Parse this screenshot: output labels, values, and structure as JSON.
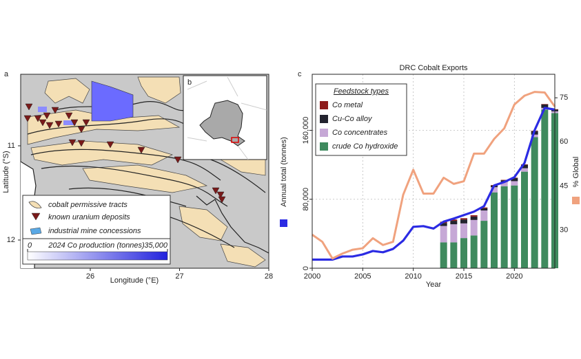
{
  "map": {
    "panel_label": "a",
    "x_label": "Longitude (°E)",
    "y_label": "Latitude (°S)",
    "xticks": [
      26,
      27,
      28
    ],
    "yticks": [
      11,
      12
    ],
    "legend": [
      "cobalt permissive tracts",
      "known uranium deposits",
      "industrial mine concessions"
    ],
    "colorbar": {
      "title": "2024 Co production (tonnes)",
      "ticks": [
        0,
        {
          "value": 35000,
          "label": "35,000"
        }
      ]
    }
  },
  "inset": {
    "panel_label": "b"
  },
  "chart_data": {
    "type": "bar",
    "panel_label": "c",
    "title": "DRC Cobalt Exports",
    "stacked": true,
    "x_label": "Year",
    "y_label": "Annual total (tonnes)",
    "y2_label": "% Global",
    "legend_title": "Feedstock types",
    "x": [
      2000,
      2001,
      2002,
      2003,
      2004,
      2005,
      2006,
      2007,
      2008,
      2009,
      2010,
      2011,
      2012,
      2013,
      2014,
      2015,
      2016,
      2017,
      2018,
      2019,
      2020,
      2021,
      2022,
      2023,
      2024
    ],
    "xlim": [
      2000,
      2024
    ],
    "xticks": [
      2000,
      2005,
      2010,
      2015,
      2020
    ],
    "ylim": [
      0,
      225000
    ],
    "yticks": [
      0,
      {
        "value": 80000,
        "label": "80,000"
      },
      {
        "value": 160000,
        "label": "160,000"
      }
    ],
    "y2lim": [
      17,
      83
    ],
    "y2ticks": [
      30,
      45,
      60,
      75
    ],
    "grid": true,
    "series": [
      {
        "name": "Co metal",
        "color": "#8e1b1b",
        "values": [
          null,
          null,
          null,
          null,
          null,
          null,
          null,
          null,
          null,
          null,
          null,
          null,
          null,
          1500,
          1500,
          1500,
          1500,
          1000,
          500,
          500,
          500,
          500,
          500,
          500,
          500
        ]
      },
      {
        "name": "Cu-Co alloy",
        "color": "#23232f",
        "values": [
          null,
          null,
          null,
          null,
          null,
          null,
          null,
          null,
          null,
          null,
          null,
          null,
          null,
          3500,
          4000,
          4500,
          4000,
          2500,
          2000,
          2000,
          3500,
          4000,
          4000,
          4000,
          2000
        ]
      },
      {
        "name": "Co concentrates",
        "color": "#c6a8d6",
        "values": [
          null,
          null,
          null,
          null,
          null,
          null,
          null,
          null,
          null,
          null,
          null,
          null,
          null,
          19000,
          21000,
          17000,
          18000,
          12000,
          6000,
          5000,
          5000,
          4000,
          3000,
          2000,
          2000
        ]
      },
      {
        "name": "crude Co hydroxide",
        "color": "#3f8a5e",
        "values": [
          null,
          null,
          null,
          null,
          null,
          null,
          null,
          null,
          null,
          null,
          null,
          null,
          null,
          30000,
          30000,
          35000,
          38000,
          55000,
          88000,
          95000,
          96000,
          112000,
          152000,
          184000,
          180000
        ]
      },
      {
        "type": "line",
        "color": "#2b2be3",
        "values": [
          10000,
          10000,
          10000,
          13600,
          13600,
          16000,
          20000,
          18500,
          22400,
          32000,
          48000,
          48800,
          46000,
          54000,
          57600,
          61600,
          65600,
          72000,
          96000,
          100000,
          105600,
          122000,
          160000,
          186000,
          184000
        ]
      },
      {
        "type": "line",
        "axis": "y2",
        "color": "#f0a27e",
        "values": [
          28.4,
          26,
          20.3,
          22,
          23.3,
          23.8,
          27.2,
          24.9,
          26,
          42,
          50.5,
          42.4,
          42.4,
          47.8,
          45.7,
          46.6,
          56,
          56,
          61,
          64.6,
          72.7,
          75.7,
          77,
          76.8,
          72
        ]
      }
    ]
  }
}
